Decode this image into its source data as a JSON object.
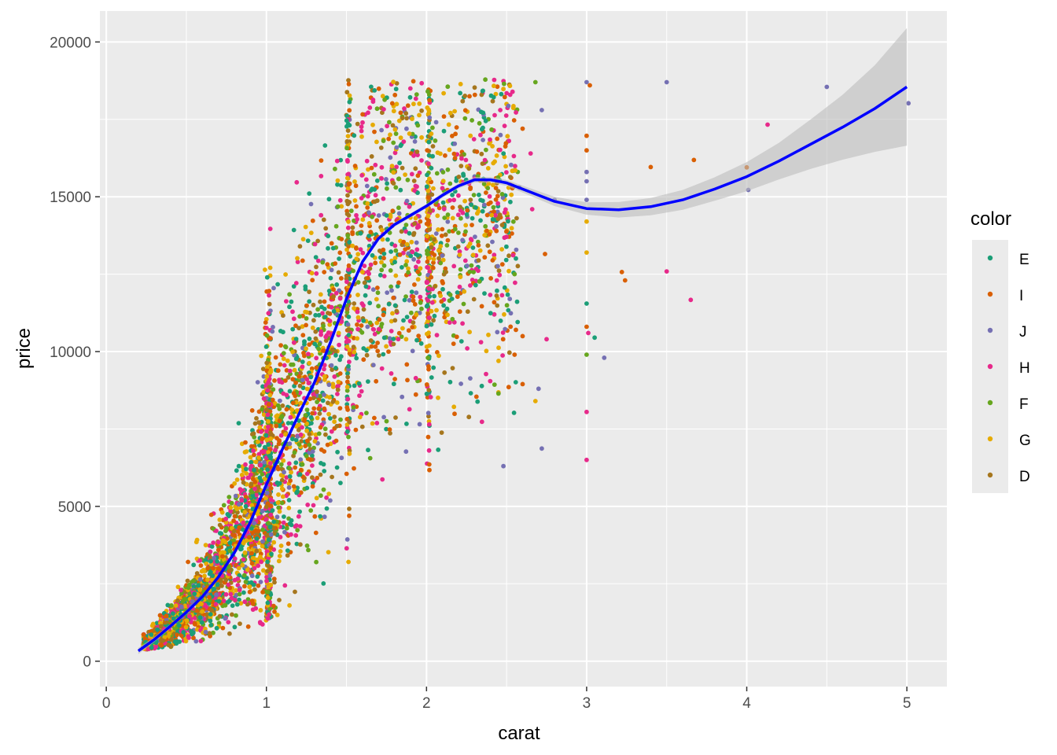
{
  "chart_data": {
    "type": "scatter",
    "title": "",
    "xlabel": "carat",
    "ylabel": "price",
    "xlim": [
      -0.04,
      5.25
    ],
    "ylim": [
      -820,
      21000
    ],
    "x_ticks": [
      0,
      1,
      2,
      3,
      4,
      5
    ],
    "x_tick_labels": [
      "0",
      "1",
      "2",
      "3",
      "4",
      "5"
    ],
    "y_ticks": [
      0,
      5000,
      10000,
      15000,
      20000
    ],
    "y_tick_labels": [
      "0",
      "5000",
      "10000",
      "15000",
      "20000"
    ],
    "grid": true,
    "legend": {
      "title": "color",
      "placement": "right",
      "entries": [
        {
          "label": "E",
          "color": "#1b9e77"
        },
        {
          "label": "I",
          "color": "#d95f02"
        },
        {
          "label": "J",
          "color": "#7570b3"
        },
        {
          "label": "H",
          "color": "#e7298a"
        },
        {
          "label": "F",
          "color": "#66a61e"
        },
        {
          "label": "G",
          "color": "#e6ab02"
        },
        {
          "label": "D",
          "color": "#a6761d"
        }
      ]
    },
    "smooth": {
      "color": "#0000ff",
      "ribbon_color": "#bdbdbd",
      "x": [
        0.2,
        0.3,
        0.4,
        0.5,
        0.6,
        0.7,
        0.8,
        0.9,
        1.0,
        1.1,
        1.2,
        1.3,
        1.4,
        1.5,
        1.6,
        1.7,
        1.8,
        1.9,
        2.0,
        2.1,
        2.2,
        2.3,
        2.4,
        2.5,
        2.6,
        2.7,
        2.8,
        3.0,
        3.2,
        3.4,
        3.6,
        3.8,
        4.0,
        4.2,
        4.4,
        4.6,
        4.8,
        5.0
      ],
      "y": [
        330,
        700,
        1130,
        1580,
        2080,
        2720,
        3500,
        4500,
        5700,
        6850,
        7950,
        9000,
        10300,
        11700,
        12900,
        13650,
        14100,
        14400,
        14700,
        15050,
        15350,
        15550,
        15550,
        15450,
        15250,
        15050,
        14850,
        14620,
        14580,
        14680,
        14900,
        15250,
        15650,
        16150,
        16700,
        17250,
        17850,
        18550
      ],
      "lower": [
        230,
        620,
        1060,
        1510,
        2010,
        2650,
        3430,
        4430,
        5630,
        6780,
        7880,
        8930,
        10230,
        11630,
        12830,
        13580,
        14030,
        14330,
        14630,
        14970,
        15270,
        15460,
        15460,
        15350,
        15140,
        14920,
        14700,
        14420,
        14330,
        14400,
        14580,
        14870,
        15180,
        15560,
        15900,
        16200,
        16450,
        16650
      ],
      "upper": [
        430,
        780,
        1200,
        1650,
        2150,
        2790,
        3570,
        4570,
        5770,
        6920,
        8020,
        9070,
        10370,
        11770,
        12970,
        13720,
        14170,
        14470,
        14770,
        15130,
        15430,
        15640,
        15640,
        15550,
        15360,
        15180,
        15000,
        14820,
        14830,
        14960,
        15220,
        15630,
        16120,
        16740,
        17500,
        18300,
        19250,
        20450
      ]
    },
    "outliers": [
      {
        "x": 3.0,
        "y": 18700,
        "c": 2
      },
      {
        "x": 3.02,
        "y": 18600,
        "c": 1
      },
      {
        "x": 3.5,
        "y": 18700,
        "c": 2
      },
      {
        "x": 4.5,
        "y": 18550,
        "c": 2
      },
      {
        "x": 5.01,
        "y": 18020,
        "c": 2
      },
      {
        "x": 4.13,
        "y": 17330,
        "c": 3
      },
      {
        "x": 3.0,
        "y": 16970,
        "c": 1
      },
      {
        "x": 3.0,
        "y": 16500,
        "c": 1
      },
      {
        "x": 3.67,
        "y": 16190,
        "c": 1
      },
      {
        "x": 3.4,
        "y": 15960,
        "c": 1
      },
      {
        "x": 4.0,
        "y": 15950,
        "c": 1
      },
      {
        "x": 4.01,
        "y": 15220,
        "c": 2
      },
      {
        "x": 3.0,
        "y": 15800,
        "c": 2
      },
      {
        "x": 3.0,
        "y": 15500,
        "c": 2
      },
      {
        "x": 3.0,
        "y": 14900,
        "c": 2
      },
      {
        "x": 3.0,
        "y": 14200,
        "c": 5
      },
      {
        "x": 3.0,
        "y": 13200,
        "c": 5
      },
      {
        "x": 3.22,
        "y": 12570,
        "c": 1
      },
      {
        "x": 3.5,
        "y": 12590,
        "c": 3
      },
      {
        "x": 3.24,
        "y": 12300,
        "c": 1
      },
      {
        "x": 3.65,
        "y": 11670,
        "c": 3
      },
      {
        "x": 3.0,
        "y": 11550,
        "c": 0
      },
      {
        "x": 3.0,
        "y": 10800,
        "c": 1
      },
      {
        "x": 3.01,
        "y": 10600,
        "c": 3
      },
      {
        "x": 3.05,
        "y": 10450,
        "c": 0
      },
      {
        "x": 3.0,
        "y": 9900,
        "c": 4
      },
      {
        "x": 3.11,
        "y": 9800,
        "c": 2
      },
      {
        "x": 3.0,
        "y": 8050,
        "c": 3
      },
      {
        "x": 3.0,
        "y": 6500,
        "c": 3
      },
      {
        "x": 2.72,
        "y": 6870,
        "c": 2
      },
      {
        "x": 2.7,
        "y": 8800,
        "c": 2
      },
      {
        "x": 2.68,
        "y": 8400,
        "c": 5
      },
      {
        "x": 2.8,
        "y": 14900,
        "c": 2
      },
      {
        "x": 2.74,
        "y": 13150,
        "c": 1
      },
      {
        "x": 2.55,
        "y": 12500,
        "c": 4
      },
      {
        "x": 2.48,
        "y": 6300,
        "c": 2
      },
      {
        "x": 2.6,
        "y": 10500,
        "c": 1
      },
      {
        "x": 2.75,
        "y": 10400,
        "c": 3
      },
      {
        "x": 2.45,
        "y": 9700,
        "c": 5
      },
      {
        "x": 2.55,
        "y": 9900,
        "c": 1
      },
      {
        "x": 2.72,
        "y": 17800,
        "c": 2
      },
      {
        "x": 2.68,
        "y": 18700,
        "c": 4
      },
      {
        "x": 2.6,
        "y": 17200,
        "c": 1
      },
      {
        "x": 2.65,
        "y": 16400,
        "c": 3
      },
      {
        "x": 2.58,
        "y": 15300,
        "c": 2
      },
      {
        "x": 2.66,
        "y": 14600,
        "c": 3
      },
      {
        "x": 2.6,
        "y": 8950,
        "c": 1
      },
      {
        "x": 2.52,
        "y": 11700,
        "c": 2
      }
    ]
  }
}
